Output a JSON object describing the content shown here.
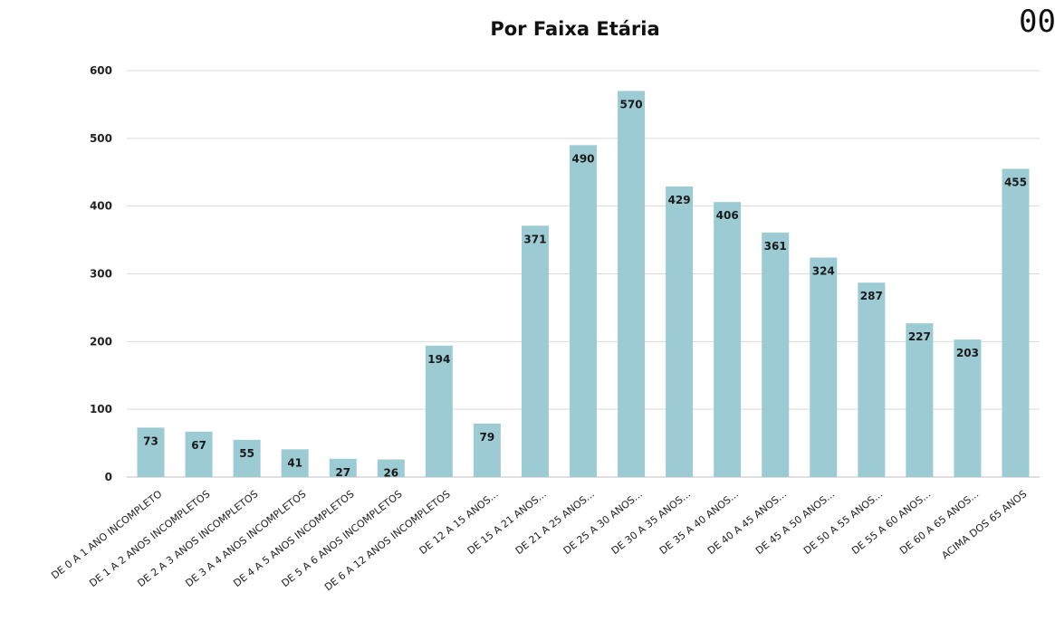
{
  "corner_text": "00",
  "chart_data": {
    "type": "bar",
    "title": "Por Faixa Etária",
    "categories": [
      "DE 0 A 1 ANO INCOMPLETO",
      "DE 1 A 2 ANOS INCOMPLETOS",
      "DE 2 A 3 ANOS INCOMPLETOS",
      "DE 3 A 4 ANOS INCOMPLETOS",
      "DE 4 A 5 ANOS INCOMPLETOS",
      "DE 5 A 6 ANOS INCOMPLETOS",
      "DE 6 A 12 ANOS INCOMPLETOS",
      "DE 12 A 15 ANOS...",
      "DE 15 A 21 ANOS...",
      "DE 21 A 25 ANOS...",
      "DE 25 A 30 ANOS...",
      "DE 30 A 35 ANOS...",
      "DE 35 A 40 ANOS...",
      "DE 40 A 45 ANOS...",
      "DE 45 A 50 ANOS...",
      "DE 50 A 55 ANOS...",
      "DE 55 A 60 ANOS...",
      "DE 60 A 65 ANOS...",
      "ACIMA DOS 65 ANOS"
    ],
    "values": [
      73,
      67,
      55,
      41,
      27,
      26,
      194,
      79,
      371,
      490,
      570,
      429,
      406,
      361,
      324,
      287,
      227,
      203,
      455
    ],
    "ylim": [
      0,
      600
    ],
    "yticks": [
      0,
      100,
      200,
      300,
      400,
      500,
      600
    ],
    "grid": true,
    "colors": {
      "bar": "#9ccbd3",
      "grid": "#d9d9d9",
      "axis": "#bfbfbf"
    }
  }
}
